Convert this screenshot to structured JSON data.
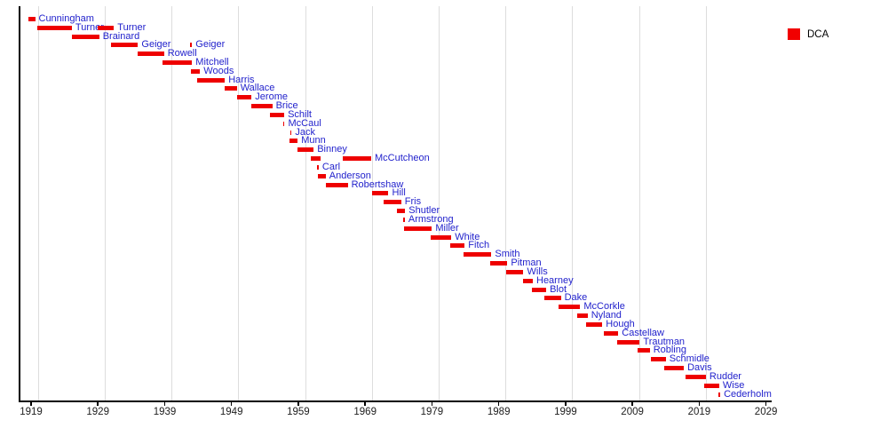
{
  "chart_data": {
    "type": "gantt",
    "legend": [
      {
        "label": "DCA",
        "color": "#f10000"
      }
    ],
    "x_axis": {
      "tick_years": [
        1919,
        1929,
        1939,
        1949,
        1959,
        1969,
        1979,
        1989,
        1999,
        2009,
        2019,
        2029
      ],
      "grid_years": [
        1920,
        1930,
        1940,
        1950,
        1960,
        1970,
        1980,
        1990,
        2000,
        2010,
        2020
      ],
      "range": [
        1917.2,
        2029.8
      ],
      "grid": true
    },
    "bar_color": "#ee0000",
    "label_color": "#2222cc",
    "rows": [
      {
        "name": "Cunningham",
        "segments": [
          {
            "start": 1918.6,
            "end": 1919.6,
            "show_label": true
          }
        ]
      },
      {
        "name": "Turner",
        "segments": [
          {
            "start": 1919.9,
            "end": 1925.1,
            "show_label": true
          },
          {
            "start": 1929.0,
            "end": 1931.4,
            "show_label": true
          }
        ]
      },
      {
        "name": "Brainard",
        "segments": [
          {
            "start": 1925.1,
            "end": 1929.2,
            "show_label": true
          }
        ]
      },
      {
        "name": "Geiger",
        "segments": [
          {
            "start": 1931.0,
            "end": 1935.0,
            "show_label": true
          },
          {
            "start": 1942.8,
            "end": 1943.1,
            "show_label": true
          }
        ]
      },
      {
        "name": "Rowell",
        "segments": [
          {
            "start": 1935.0,
            "end": 1938.9,
            "show_label": true
          }
        ]
      },
      {
        "name": "Mitchell",
        "segments": [
          {
            "start": 1938.7,
            "end": 1943.1,
            "show_label": true
          }
        ]
      },
      {
        "name": "Woods",
        "segments": [
          {
            "start": 1942.9,
            "end": 1944.3,
            "show_label": true
          }
        ]
      },
      {
        "name": "Harris",
        "segments": [
          {
            "start": 1943.9,
            "end": 1948.0,
            "show_label": true
          }
        ]
      },
      {
        "name": "Wallace",
        "segments": [
          {
            "start": 1948.0,
            "end": 1949.8,
            "show_label": true
          }
        ]
      },
      {
        "name": "Jerome",
        "segments": [
          {
            "start": 1949.8,
            "end": 1952.0,
            "show_label": true
          }
        ]
      },
      {
        "name": "Brice",
        "segments": [
          {
            "start": 1952.0,
            "end": 1955.1,
            "show_label": true
          }
        ]
      },
      {
        "name": "Schilt",
        "segments": [
          {
            "start": 1954.8,
            "end": 1956.9,
            "show_label": true
          }
        ]
      },
      {
        "name": "McCaul",
        "segments": [
          {
            "start": 1956.7,
            "end": 1956.95,
            "show_label": true
          }
        ]
      },
      {
        "name": "Jack",
        "segments": [
          {
            "start": 1957.75,
            "end": 1958.0,
            "show_label": true
          }
        ]
      },
      {
        "name": "Munn",
        "segments": [
          {
            "start": 1957.7,
            "end": 1958.9,
            "show_label": true
          }
        ]
      },
      {
        "name": "Binney",
        "segments": [
          {
            "start": 1958.9,
            "end": 1961.3,
            "show_label": true
          }
        ]
      },
      {
        "name": "McCutcheon",
        "segments": [
          {
            "start": 1960.8,
            "end": 1962.3,
            "show_label": false
          },
          {
            "start": 1965.7,
            "end": 1969.9,
            "show_label": true
          }
        ]
      },
      {
        "name": "Carl",
        "segments": [
          {
            "start": 1961.8,
            "end": 1962.05,
            "show_label": true
          }
        ]
      },
      {
        "name": "Anderson",
        "segments": [
          {
            "start": 1961.9,
            "end": 1963.1,
            "show_label": true
          }
        ]
      },
      {
        "name": "Robertshaw",
        "segments": [
          {
            "start": 1963.1,
            "end": 1966.4,
            "show_label": true
          }
        ]
      },
      {
        "name": "Hill",
        "segments": [
          {
            "start": 1970.0,
            "end": 1972.5,
            "show_label": true
          }
        ]
      },
      {
        "name": "Fris",
        "segments": [
          {
            "start": 1971.8,
            "end": 1974.4,
            "show_label": true
          }
        ]
      },
      {
        "name": "Shutler",
        "segments": [
          {
            "start": 1973.7,
            "end": 1975.0,
            "show_label": true
          }
        ]
      },
      {
        "name": "Armstrong",
        "segments": [
          {
            "start": 1974.7,
            "end": 1974.95,
            "show_label": true
          }
        ]
      },
      {
        "name": "Miller",
        "segments": [
          {
            "start": 1974.8,
            "end": 1979.0,
            "show_label": true
          }
        ]
      },
      {
        "name": "White",
        "segments": [
          {
            "start": 1978.8,
            "end": 1981.9,
            "show_label": true
          }
        ]
      },
      {
        "name": "Fitch",
        "segments": [
          {
            "start": 1981.7,
            "end": 1983.9,
            "show_label": true
          }
        ]
      },
      {
        "name": "Smith",
        "segments": [
          {
            "start": 1983.7,
            "end": 1987.9,
            "show_label": true
          }
        ]
      },
      {
        "name": "Pitman",
        "segments": [
          {
            "start": 1987.7,
            "end": 1990.3,
            "show_label": true
          }
        ]
      },
      {
        "name": "Wills",
        "segments": [
          {
            "start": 1990.1,
            "end": 1992.7,
            "show_label": true
          }
        ]
      },
      {
        "name": "Hearney",
        "segments": [
          {
            "start": 1992.6,
            "end": 1994.1,
            "show_label": true
          }
        ]
      },
      {
        "name": "Blot",
        "segments": [
          {
            "start": 1993.9,
            "end": 1996.1,
            "show_label": true
          }
        ]
      },
      {
        "name": "Dake",
        "segments": [
          {
            "start": 1995.8,
            "end": 1998.3,
            "show_label": true
          }
        ]
      },
      {
        "name": "McCorkle",
        "segments": [
          {
            "start": 1998.0,
            "end": 2001.2,
            "show_label": true
          }
        ]
      },
      {
        "name": "Nyland",
        "segments": [
          {
            "start": 2000.7,
            "end": 2002.3,
            "show_label": true
          }
        ]
      },
      {
        "name": "Hough",
        "segments": [
          {
            "start": 2002.0,
            "end": 2004.5,
            "show_label": true
          }
        ]
      },
      {
        "name": "Castellaw",
        "segments": [
          {
            "start": 2004.7,
            "end": 2006.9,
            "show_label": true
          }
        ]
      },
      {
        "name": "Trautman",
        "segments": [
          {
            "start": 2006.7,
            "end": 2010.1,
            "show_label": true
          }
        ]
      },
      {
        "name": "Robling",
        "segments": [
          {
            "start": 2009.8,
            "end": 2011.6,
            "show_label": true
          }
        ]
      },
      {
        "name": "Schmidle",
        "segments": [
          {
            "start": 2011.8,
            "end": 2014.0,
            "show_label": true
          }
        ]
      },
      {
        "name": "Davis",
        "segments": [
          {
            "start": 2013.8,
            "end": 2016.7,
            "show_label": true
          }
        ]
      },
      {
        "name": "Rudder",
        "segments": [
          {
            "start": 2016.9,
            "end": 2020.0,
            "show_label": true
          }
        ]
      },
      {
        "name": "Wise",
        "segments": [
          {
            "start": 2019.8,
            "end": 2022.0,
            "show_label": true
          }
        ]
      },
      {
        "name": "Cederholm",
        "segments": [
          {
            "start": 2021.9,
            "end": 2022.15,
            "show_label": true
          }
        ]
      }
    ]
  }
}
